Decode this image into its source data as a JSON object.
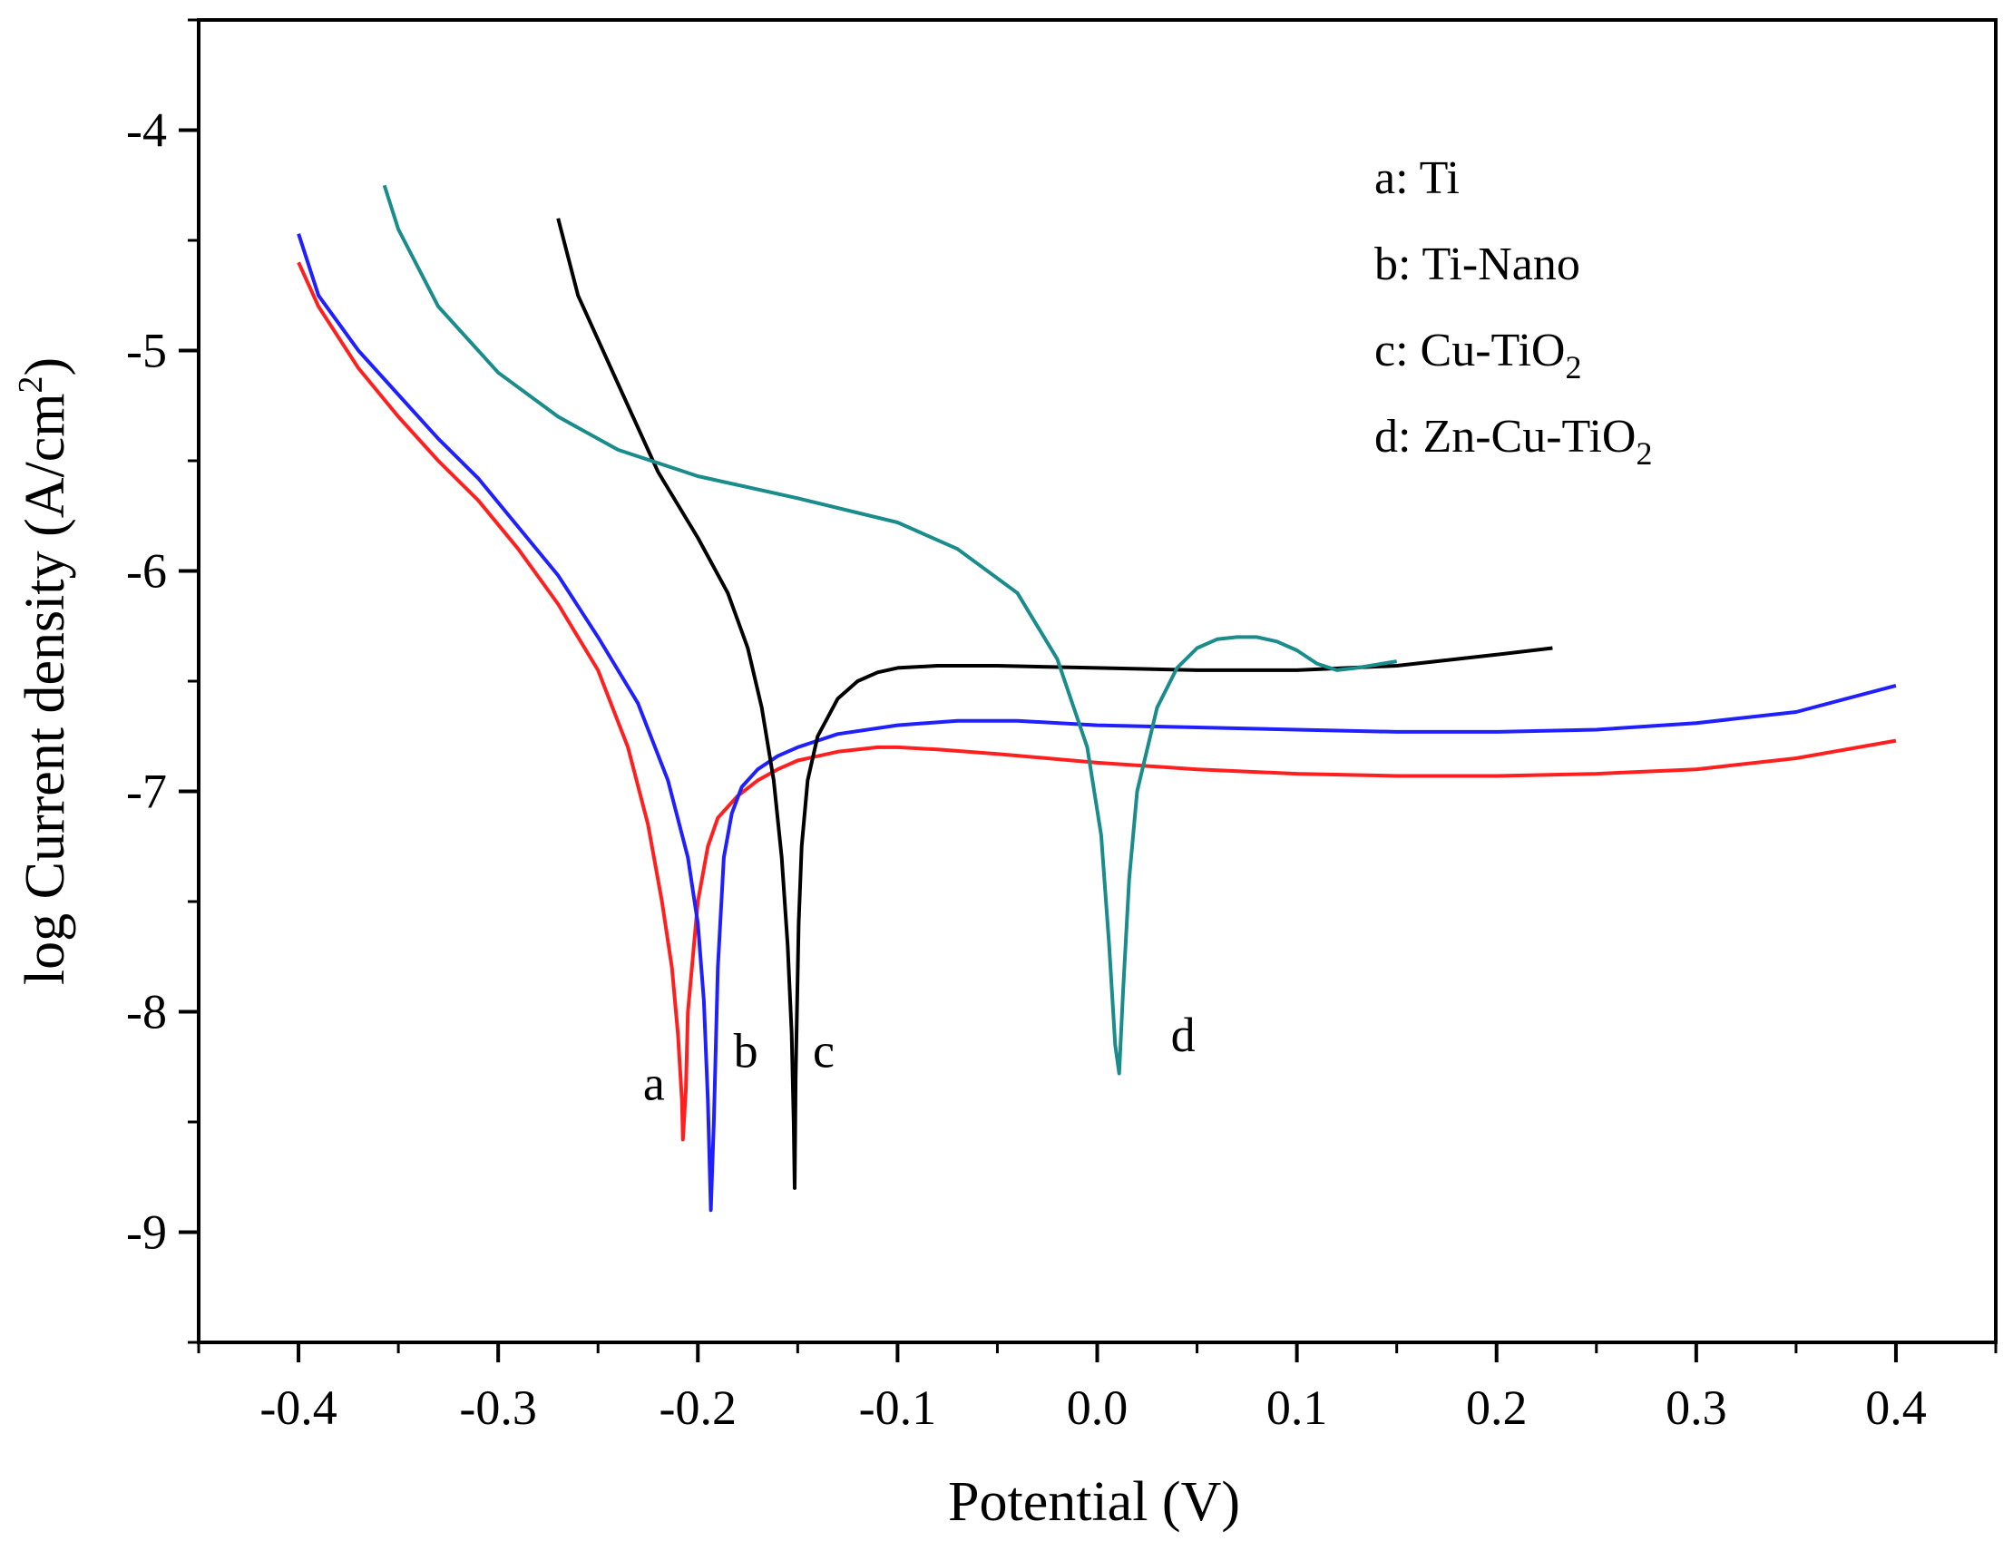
{
  "chart_data": {
    "type": "line",
    "title": "",
    "xlabel": "Potential (V)",
    "ylabel": "log Current density (A/cm",
    "ylabel_sup": "2",
    "ylabel_tail": ")",
    "xlim": [
      -0.45,
      0.45
    ],
    "ylim": [
      -9.5,
      -3.5
    ],
    "xticks": [
      -0.4,
      -0.3,
      -0.2,
      -0.1,
      0.0,
      0.1,
      0.2,
      0.3,
      0.4
    ],
    "xtick_labels": [
      "-0.4",
      "-0.3",
      "-0.2",
      "-0.1",
      "0.0",
      "0.1",
      "0.2",
      "0.3",
      "0.4"
    ],
    "yticks": [
      -4,
      -5,
      -6,
      -7,
      -8,
      -9
    ],
    "ytick_labels": [
      "-4",
      "-5",
      "-6",
      "-7",
      "-8",
      "-9"
    ],
    "legend_position": "top-right",
    "legend": [
      {
        "key": "a",
        "text": "a: Ti",
        "main": "a: Ti",
        "sub": "",
        "tail": ""
      },
      {
        "key": "b",
        "text": "b: Ti-Nano",
        "main": "b: Ti-Nano",
        "sub": "",
        "tail": ""
      },
      {
        "key": "c",
        "text": "c: Cu-TiO2",
        "main": "c: Cu-TiO",
        "sub": "2",
        "tail": ""
      },
      {
        "key": "d",
        "text": "d: Zn-Cu-TiO2",
        "main": "d: Zn-Cu-TiO",
        "sub": "2",
        "tail": ""
      }
    ],
    "curve_labels": [
      {
        "text": "a",
        "x": -0.222,
        "y": -8.4
      },
      {
        "text": "b",
        "x": -0.176,
        "y": -8.25
      },
      {
        "text": "c",
        "x": -0.137,
        "y": -8.25
      },
      {
        "text": "d",
        "x": 0.043,
        "y": -8.18
      }
    ],
    "series": [
      {
        "name": "a: Ti",
        "color": "#ff1f1f",
        "x": [
          -0.4,
          -0.39,
          -0.37,
          -0.35,
          -0.33,
          -0.31,
          -0.29,
          -0.27,
          -0.25,
          -0.235,
          -0.225,
          -0.218,
          -0.213,
          -0.21,
          -0.208,
          -0.2075,
          -0.206,
          -0.205,
          -0.203,
          -0.2,
          -0.195,
          -0.19,
          -0.18,
          -0.17,
          -0.16,
          -0.15,
          -0.13,
          -0.11,
          -0.1,
          -0.08,
          -0.05,
          0.0,
          0.05,
          0.1,
          0.15,
          0.2,
          0.25,
          0.3,
          0.35,
          0.4
        ],
        "y": [
          -4.6,
          -4.8,
          -5.08,
          -5.3,
          -5.5,
          -5.68,
          -5.9,
          -6.15,
          -6.45,
          -6.8,
          -7.15,
          -7.5,
          -7.8,
          -8.1,
          -8.4,
          -8.58,
          -8.35,
          -8.0,
          -7.8,
          -7.5,
          -7.25,
          -7.12,
          -7.02,
          -6.95,
          -6.9,
          -6.86,
          -6.82,
          -6.8,
          -6.8,
          -6.81,
          -6.83,
          -6.87,
          -6.9,
          -6.92,
          -6.93,
          -6.93,
          -6.92,
          -6.9,
          -6.85,
          -6.77
        ]
      },
      {
        "name": "b: Ti-Nano",
        "color": "#1f1fff",
        "x": [
          -0.4,
          -0.39,
          -0.37,
          -0.35,
          -0.33,
          -0.31,
          -0.29,
          -0.27,
          -0.25,
          -0.23,
          -0.215,
          -0.205,
          -0.2,
          -0.197,
          -0.195,
          -0.1935,
          -0.192,
          -0.19,
          -0.187,
          -0.183,
          -0.178,
          -0.17,
          -0.16,
          -0.15,
          -0.13,
          -0.1,
          -0.07,
          -0.04,
          0.0,
          0.05,
          0.1,
          0.15,
          0.2,
          0.25,
          0.3,
          0.35,
          0.4
        ],
        "y": [
          -4.47,
          -4.75,
          -5.0,
          -5.2,
          -5.4,
          -5.58,
          -5.8,
          -6.02,
          -6.3,
          -6.6,
          -6.95,
          -7.3,
          -7.6,
          -7.95,
          -8.4,
          -8.9,
          -8.5,
          -7.8,
          -7.3,
          -7.1,
          -6.98,
          -6.9,
          -6.84,
          -6.8,
          -6.74,
          -6.7,
          -6.68,
          -6.68,
          -6.7,
          -6.71,
          -6.72,
          -6.73,
          -6.73,
          -6.72,
          -6.69,
          -6.64,
          -6.52
        ]
      },
      {
        "name": "c: Cu-TiO2",
        "color": "#000000",
        "x": [
          -0.27,
          -0.26,
          -0.24,
          -0.22,
          -0.2,
          -0.185,
          -0.175,
          -0.168,
          -0.162,
          -0.158,
          -0.155,
          -0.153,
          -0.152,
          -0.1515,
          -0.151,
          -0.1495,
          -0.148,
          -0.145,
          -0.14,
          -0.13,
          -0.12,
          -0.11,
          -0.1,
          -0.08,
          -0.05,
          0.0,
          0.05,
          0.1,
          0.15,
          0.2,
          0.228
        ],
        "y": [
          -4.4,
          -4.75,
          -5.15,
          -5.55,
          -5.85,
          -6.1,
          -6.35,
          -6.62,
          -6.95,
          -7.3,
          -7.7,
          -8.1,
          -8.5,
          -8.8,
          -8.3,
          -7.6,
          -7.25,
          -6.95,
          -6.75,
          -6.58,
          -6.5,
          -6.46,
          -6.44,
          -6.43,
          -6.43,
          -6.44,
          -6.45,
          -6.45,
          -6.43,
          -6.38,
          -6.35
        ]
      },
      {
        "name": "d: Zn-Cu-TiO2",
        "color": "#1a8c8c",
        "x": [
          -0.357,
          -0.35,
          -0.33,
          -0.3,
          -0.27,
          -0.24,
          -0.2,
          -0.15,
          -0.1,
          -0.07,
          -0.04,
          -0.02,
          -0.005,
          0.002,
          0.006,
          0.009,
          0.011,
          0.013,
          0.016,
          0.02,
          0.03,
          0.04,
          0.05,
          0.06,
          0.07,
          0.08,
          0.09,
          0.1,
          0.11,
          0.12,
          0.13,
          0.15
        ],
        "y": [
          -4.25,
          -4.45,
          -4.8,
          -5.1,
          -5.3,
          -5.45,
          -5.57,
          -5.67,
          -5.78,
          -5.9,
          -6.1,
          -6.4,
          -6.8,
          -7.2,
          -7.7,
          -8.15,
          -8.28,
          -7.9,
          -7.4,
          -7.0,
          -6.62,
          -6.44,
          -6.35,
          -6.31,
          -6.3,
          -6.3,
          -6.32,
          -6.36,
          -6.42,
          -6.45,
          -6.44,
          -6.41
        ]
      }
    ]
  }
}
